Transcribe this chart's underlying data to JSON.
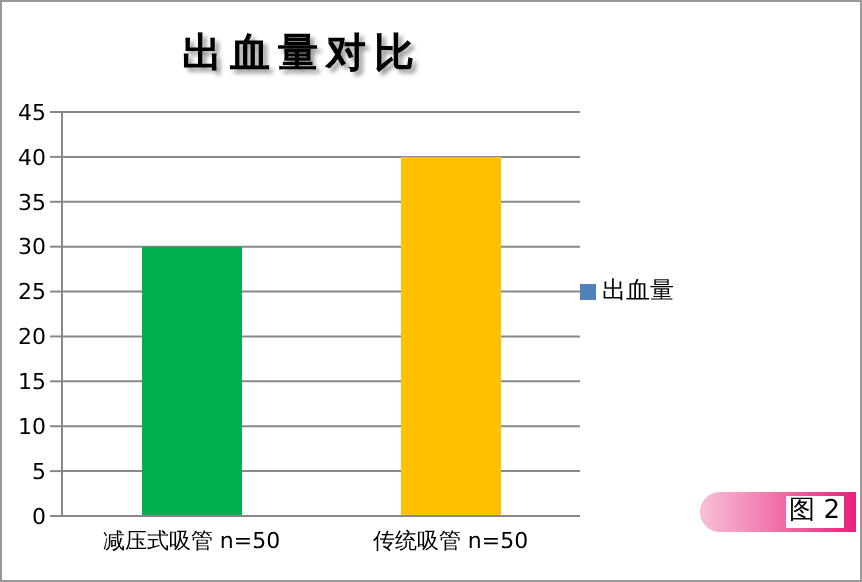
{
  "chart_data": {
    "type": "bar",
    "title": "出血量对比",
    "categories": [
      "减压式吸管  n=50",
      "传统吸管  n=50"
    ],
    "series": [
      {
        "name": "出血量",
        "color": "#4f81bd",
        "colors": [
          "#00b050",
          "#ffc000"
        ],
        "values": [
          30,
          40
        ]
      }
    ],
    "ylim": [
      0,
      45
    ],
    "yticks": [
      0,
      5,
      10,
      15,
      20,
      25,
      30,
      35,
      40,
      45
    ],
    "grid": "y",
    "legend": "right",
    "annotations": [
      "图 2"
    ]
  }
}
